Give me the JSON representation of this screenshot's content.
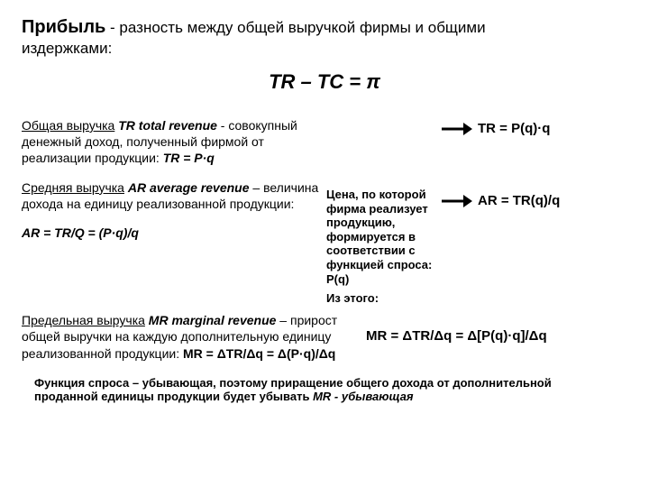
{
  "title": {
    "word": "Прибыль",
    "rest1": " - разность между общей выручкой фирмы и общими",
    "line2": "издержками:"
  },
  "mainEq": "TR – TC = π",
  "left": {
    "p1_u": "Общая выручка",
    "p1_b1": " TR",
    "p1_it": " total revenue",
    "p1_rest": " - совокупный денежный доход, полученный фирмой от реализации продукции: ",
    "p1_b2": "TR = P·q",
    "p2_u": "Средняя выручка",
    "p2_b1": " AR",
    "p2_it": " average revenue",
    "p2_rest": " – величина дохода на единицу реализованной продукции:",
    "p3_b": "AR = TR/Q  = (P·q)/q"
  },
  "center": {
    "note": "Цена, по которой фирма реализует продукцию, формируется в соответствии с функцией спроса: P(q)"
  },
  "right": {
    "f1": "TR = P(q)·q",
    "f2": "AR = TR(q)/q"
  },
  "afterMid": "Из этого:",
  "bottomLeft": {
    "u": "Предельная выручка",
    "b1": " MR",
    "it": " marginal revenue",
    "rest": " – прирост общей выручки на каждую дополнительную единицу реализованной продукции: ",
    "b2": "MR = ΔTR/Δq = Δ(P·q)/Δq"
  },
  "bottomRight": {
    "f": "MR = ΔTR/Δq = Δ[P(q)·q]/Δq"
  },
  "foot": {
    "t1": "Функция спроса – убывающая, поэтому приращение общего дохода от дополнительной проданной единицы продукции будет убывать ",
    "b": " MR - убывающая"
  }
}
